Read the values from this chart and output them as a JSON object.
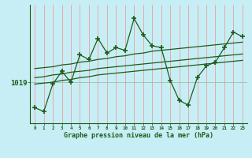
{
  "xlabel": "Graphe pression niveau de la mer (hPa)",
  "x": [
    0,
    1,
    2,
    3,
    4,
    5,
    6,
    7,
    8,
    9,
    10,
    11,
    12,
    13,
    14,
    15,
    16,
    17,
    18,
    19,
    20,
    21,
    22,
    23
  ],
  "y_main": [
    1016.2,
    1015.8,
    1018.8,
    1020.2,
    1019.0,
    1022.0,
    1021.5,
    1023.8,
    1022.2,
    1022.8,
    1022.5,
    1026.0,
    1024.2,
    1023.0,
    1022.8,
    1019.2,
    1017.0,
    1016.5,
    1019.5,
    1020.8,
    1021.2,
    1022.8,
    1024.5,
    1024.0
  ],
  "y_smooth_upper": [
    1020.5,
    1020.6,
    1020.7,
    1020.9,
    1021.0,
    1021.2,
    1021.3,
    1021.5,
    1021.6,
    1021.8,
    1021.9,
    1022.1,
    1022.2,
    1022.4,
    1022.5,
    1022.6,
    1022.7,
    1022.8,
    1022.9,
    1023.0,
    1023.1,
    1023.2,
    1023.3,
    1023.4
  ],
  "y_smooth_mid": [
    1019.5,
    1019.6,
    1019.8,
    1019.9,
    1020.1,
    1020.2,
    1020.3,
    1020.5,
    1020.6,
    1020.7,
    1020.8,
    1020.9,
    1021.0,
    1021.1,
    1021.2,
    1021.3,
    1021.4,
    1021.5,
    1021.6,
    1021.7,
    1021.8,
    1021.9,
    1022.0,
    1022.1
  ],
  "y_smooth_lower": [
    1018.8,
    1018.9,
    1019.0,
    1019.2,
    1019.3,
    1019.5,
    1019.6,
    1019.8,
    1019.9,
    1020.0,
    1020.1,
    1020.2,
    1020.3,
    1020.4,
    1020.5,
    1020.6,
    1020.7,
    1020.8,
    1020.9,
    1021.0,
    1021.1,
    1021.2,
    1021.3,
    1021.4
  ],
  "line_color": "#1a5c1a",
  "bg_color": "#c8eef5",
  "grid_v_color": "#e8a0a0",
  "grid_h_color": "#99bbaa",
  "ylim_min": 1014.5,
  "ylim_max": 1027.5,
  "xlim_min": -0.5,
  "xlim_max": 23.5,
  "ytick_value": 1019,
  "marker": "+",
  "markersize": 4,
  "markeredgewidth": 1.2,
  "linewidth": 0.9
}
